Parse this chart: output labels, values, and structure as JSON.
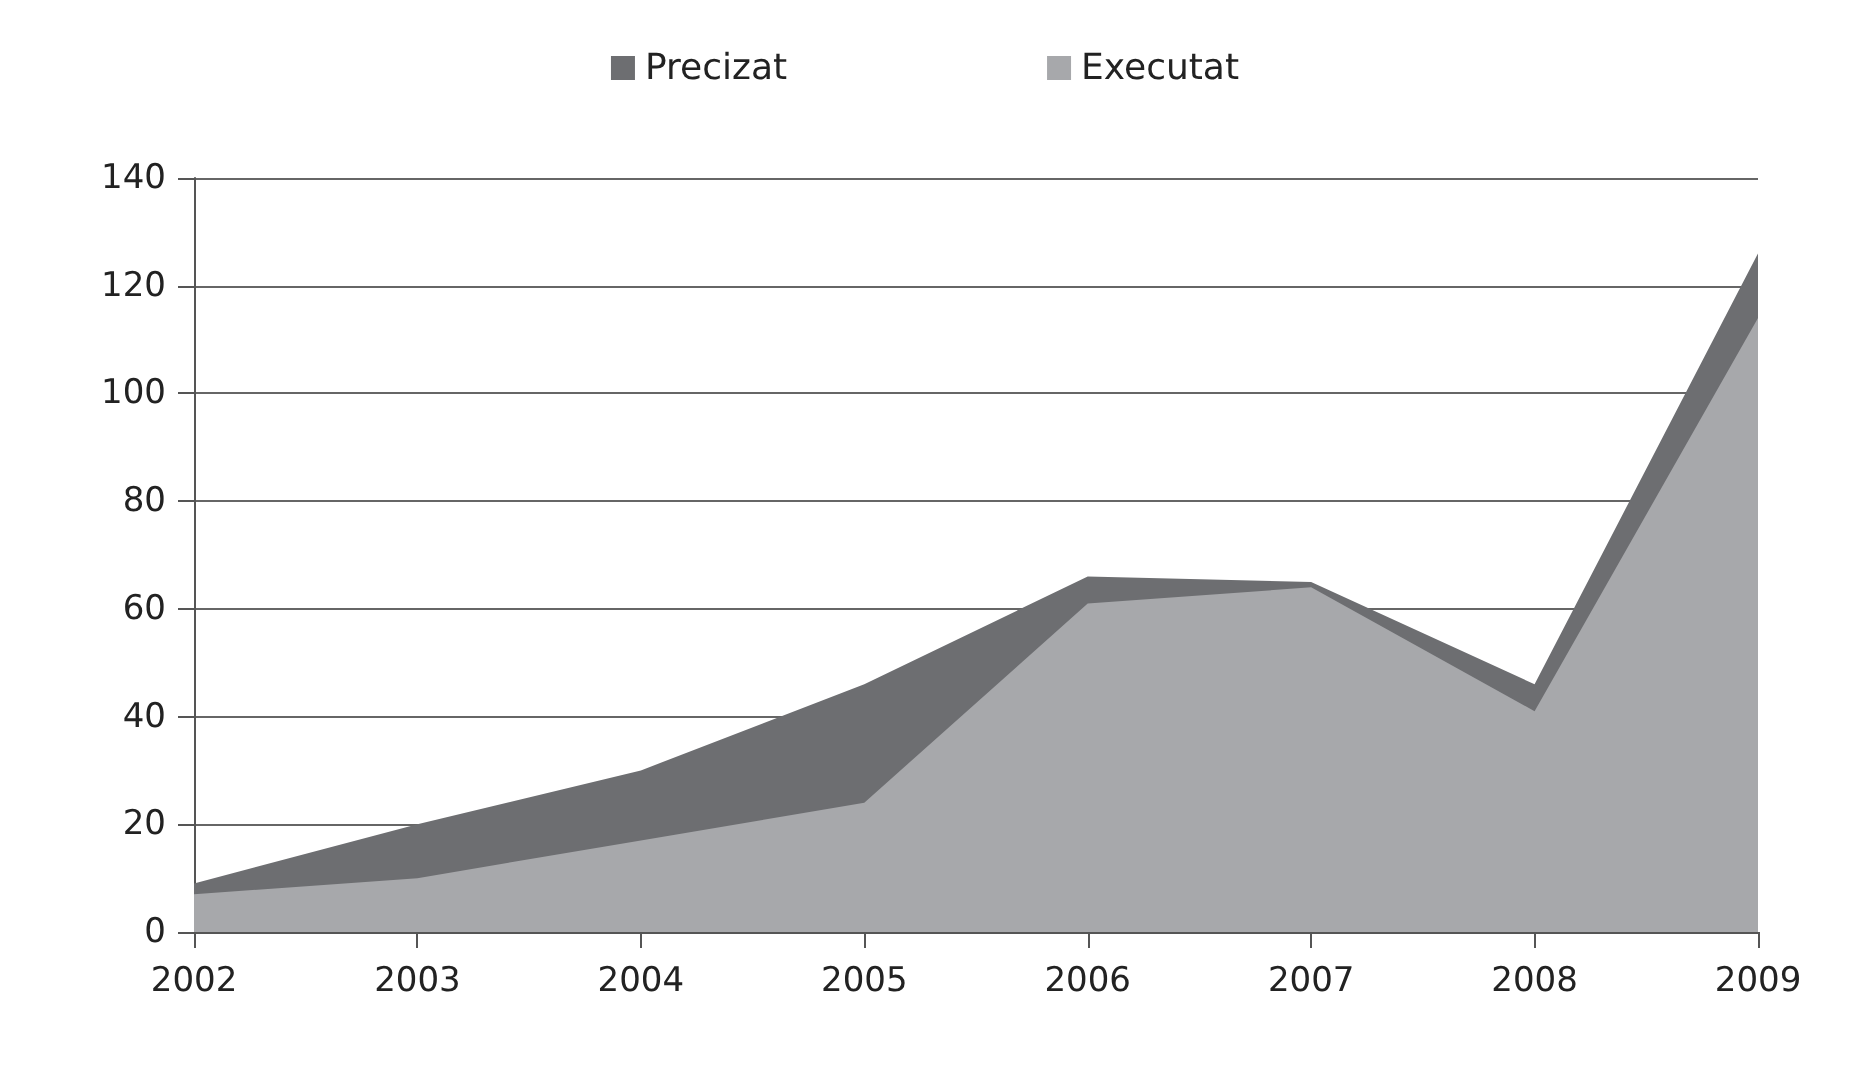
{
  "chart_data": {
    "type": "area",
    "categories": [
      "2002",
      "2003",
      "2004",
      "2005",
      "2006",
      "2007",
      "2008",
      "2009"
    ],
    "series": [
      {
        "name": "Precizat",
        "color": "#6d6e71",
        "values": [
          9,
          20,
          30,
          46,
          66,
          65,
          46,
          126
        ]
      },
      {
        "name": "Executat",
        "color": "#a7a8ab",
        "values": [
          7,
          10,
          17,
          24,
          61,
          64,
          41,
          114
        ]
      }
    ],
    "ylim": [
      0,
      140
    ],
    "yticks": [
      0,
      20,
      40,
      60,
      80,
      100,
      120,
      140
    ],
    "grid": "y",
    "legend": "top",
    "marker": "none"
  }
}
